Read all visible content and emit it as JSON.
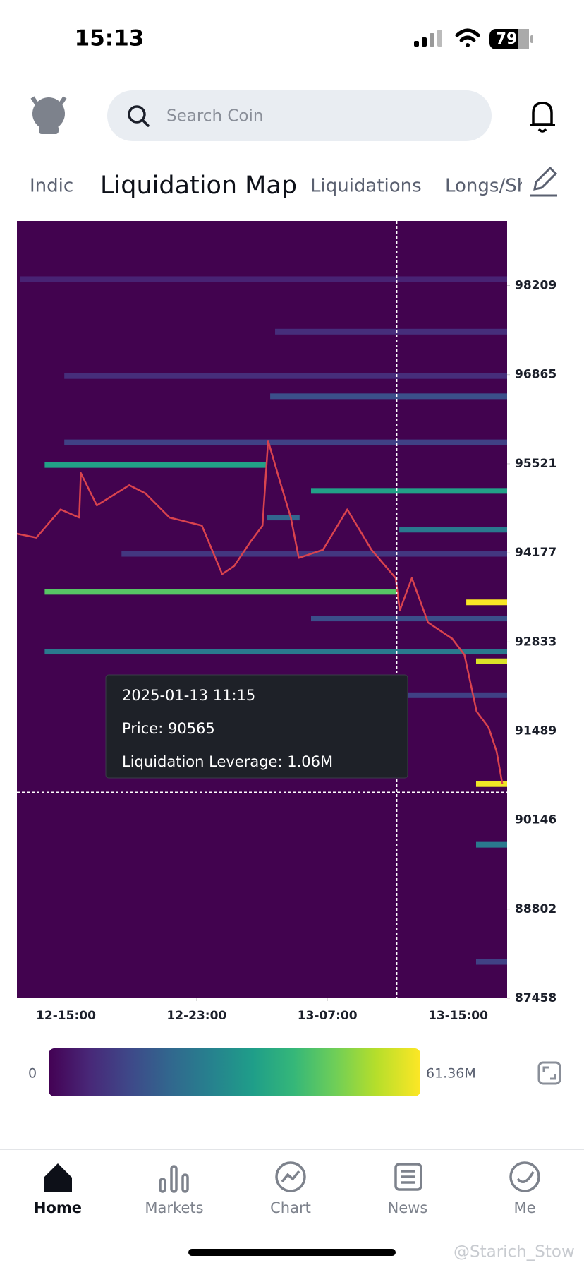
{
  "status_bar": {
    "time": "15:13",
    "battery": "79"
  },
  "search": {
    "placeholder": "Search Coin"
  },
  "tabs": [
    "Indic",
    "Liquidation Map",
    "Liquidations",
    "Longs/Sh"
  ],
  "chart_data": {
    "type": "heatmap",
    "xlim": [
      12,
      42
    ],
    "xticks": [
      {
        "value": 15,
        "label": "12-15:00"
      },
      {
        "value": 23,
        "label": "12-23:00"
      },
      {
        "value": 31,
        "label": "13-07:00"
      },
      {
        "value": 39,
        "label": "13-15:00"
      }
    ],
    "ylim": [
      87458,
      99184
    ],
    "yticks": [
      98209,
      96865,
      95521,
      94177,
      92833,
      91489,
      90146,
      88802,
      87458
    ],
    "clim": [
      {
        "value": 0,
        "label": "0"
      },
      {
        "value": 61.36,
        "label": "61.36M"
      }
    ],
    "bands": [
      {
        "price": 98306,
        "start": 12.2,
        "end": 42,
        "value": 6
      },
      {
        "price": 97514,
        "start": 27.8,
        "end": 42,
        "value": 8
      },
      {
        "price": 96844,
        "start": 14.9,
        "end": 42,
        "value": 8
      },
      {
        "price": 96539,
        "start": 27.5,
        "end": 42,
        "value": 15
      },
      {
        "price": 95844,
        "start": 14.9,
        "end": 42,
        "value": 12
      },
      {
        "price": 95503,
        "start": 13.7,
        "end": 27.3,
        "value": 35
      },
      {
        "price": 95112,
        "start": 30,
        "end": 42,
        "value": 35
      },
      {
        "price": 94710,
        "start": 27.3,
        "end": 29.3,
        "value": 20
      },
      {
        "price": 94527,
        "start": 35.4,
        "end": 42,
        "value": 25
      },
      {
        "price": 94162,
        "start": 18.4,
        "end": 42,
        "value": 10
      },
      {
        "price": 93589,
        "start": 13.7,
        "end": 35.2,
        "value": 45
      },
      {
        "price": 93430,
        "start": 39.5,
        "end": 42,
        "value": 61
      },
      {
        "price": 93187,
        "start": 30,
        "end": 42,
        "value": 15
      },
      {
        "price": 92687,
        "start": 13.7,
        "end": 42,
        "value": 25
      },
      {
        "price": 92541,
        "start": 40.1,
        "end": 42,
        "value": 58
      },
      {
        "price": 92029,
        "start": 35.4,
        "end": 42,
        "value": 12
      },
      {
        "price": 90688,
        "start": 40.1,
        "end": 42,
        "value": 60
      },
      {
        "price": 89773,
        "start": 40.1,
        "end": 42,
        "value": 25
      },
      {
        "price": 88006,
        "start": 40.1,
        "end": 42,
        "value": 12
      }
    ],
    "price_line": {
      "color": "#d9434e",
      "x": [
        12.0,
        13.19,
        14.67,
        15.81,
        15.91,
        16.89,
        18.87,
        19.86,
        21.34,
        23.32,
        24.56,
        25.3,
        26.29,
        27.03,
        27.37,
        28.02,
        28.76,
        29.25,
        30.73,
        32.22,
        33.7,
        35.18,
        35.43,
        36.17,
        37.16,
        38.64,
        39.39,
        40.13,
        40.87,
        41.36,
        41.71
      ],
      "values": [
        94466,
        94406,
        94832,
        94710,
        95381,
        94893,
        95198,
        95076,
        94710,
        94588,
        93857,
        93979,
        94345,
        94588,
        95868,
        95320,
        94710,
        94101,
        94223,
        94832,
        94223,
        93796,
        93308,
        93796,
        93126,
        92882,
        92638,
        91785,
        91541,
        91175,
        90688
      ]
    },
    "crosshair_x": 35.25,
    "tooltip": {
      "date": "2025-01-13 11:15",
      "price": {
        "value": 90565,
        "label": "Price: 90565"
      },
      "leverage": "Liquidation Leverage: 1.06M"
    }
  },
  "nav": [
    "Home",
    "Markets",
    "Chart",
    "News",
    "Me"
  ],
  "watermark": "@Starich_Stow"
}
